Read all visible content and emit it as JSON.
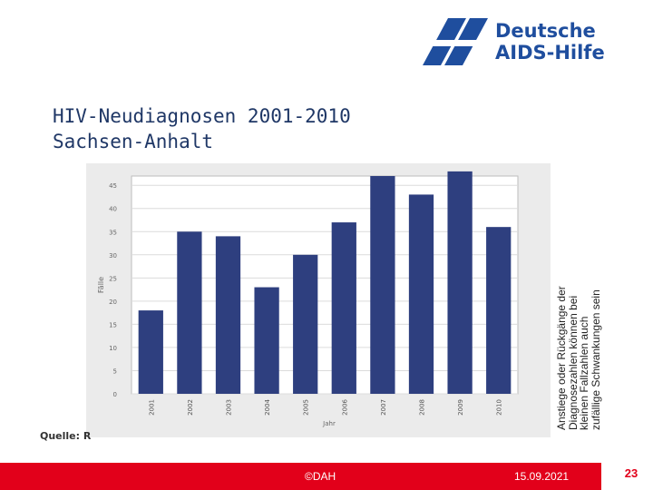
{
  "logo": {
    "line1": "Deutsche",
    "line2": "AIDS-Hilfe"
  },
  "slide": {
    "title_line1": "HIV-Neudiagnosen 2001-2010",
    "title_line2": "Sachsen-Anhalt",
    "source_label": "Quelle: R",
    "note_lines": [
      "Anstiege oder Rückgänge der",
      "Diagnosezahlen können bei",
      "kleinen Fallzahlen auch",
      "zufällige Schwankungen sein"
    ]
  },
  "footer": {
    "copyright": "©DAH",
    "date": "15.09.2021",
    "page_number": "23"
  },
  "colors": {
    "accent": "#e2001a",
    "bar": "#2e3f7f",
    "brand": "#1f4e9e"
  },
  "chart_data": {
    "type": "bar",
    "title": "",
    "xlabel": "Jahr",
    "ylabel": "Fälle",
    "categories": [
      "2001",
      "2002",
      "2003",
      "2004",
      "2005",
      "2006",
      "2007",
      "2008",
      "2009",
      "2010"
    ],
    "values": [
      18,
      35,
      34,
      23,
      30,
      37,
      47,
      43,
      48,
      36
    ],
    "ylim": [
      0,
      47
    ],
    "yticks": [
      0,
      5,
      10,
      15,
      20,
      25,
      30,
      35,
      40,
      45
    ],
    "grid": true
  }
}
